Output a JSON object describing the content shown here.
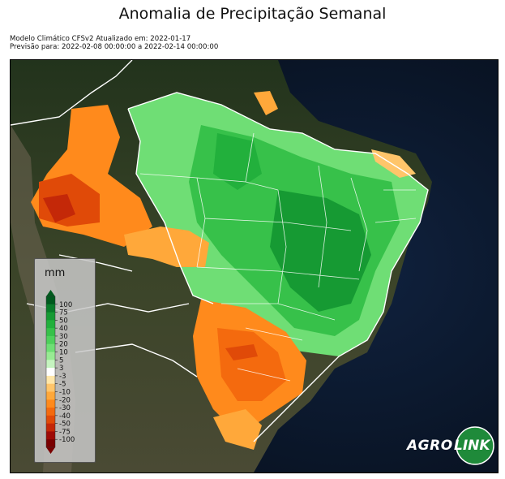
{
  "title": "Anomalia de Precipitação Semanal",
  "meta": {
    "line1": "Modelo Climático CFSv2 Atualizado em: 2022-01-17",
    "line2": "Previsão para: 2022-02-08 00:00:00 a 2022-02-14 00:00:00"
  },
  "legend": {
    "unit": "mm",
    "ticks": [
      "100",
      "75",
      "50",
      "40",
      "30",
      "20",
      "10",
      "5",
      "3",
      "-3",
      "-5",
      "-10",
      "-20",
      "-30",
      "-40",
      "-50",
      "-75",
      "-100"
    ],
    "colors": [
      "#005a1e",
      "#0a7d2a",
      "#169a33",
      "#22b03c",
      "#37c14a",
      "#4fd05c",
      "#6fde75",
      "#98ea93",
      "#c6f4c0",
      "#ffffff",
      "#ffe6a8",
      "#ffc56a",
      "#ffa83a",
      "#ff8a1c",
      "#f46a0e",
      "#e04a08",
      "#c42808",
      "#9e0a06",
      "#7a0000"
    ]
  },
  "logo": {
    "part1": "AGRO",
    "part2": "LINK"
  },
  "colors": {
    "ocean": "#0a1526",
    "land": "#2d3a24",
    "border": "#ffffff"
  }
}
